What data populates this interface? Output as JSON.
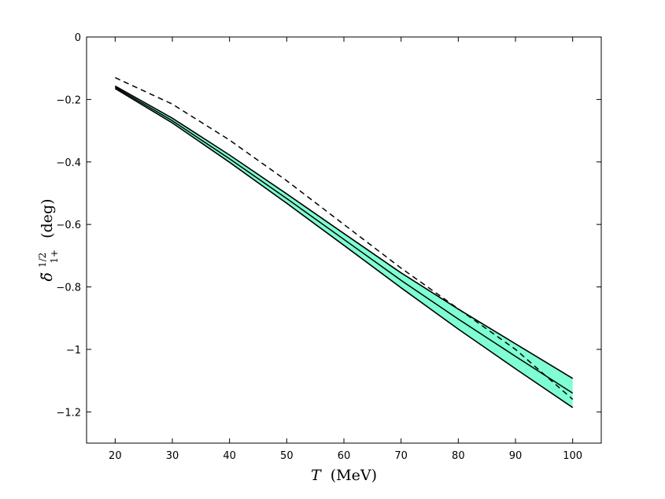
{
  "chart_data": {
    "type": "line",
    "xlabel_symbol": "T",
    "xlabel_unit": "(MeV)",
    "ylabel_base": "δ̃",
    "ylabel_sup": "1/2",
    "ylabel_sub": "1+",
    "ylabel_unit": "(deg)",
    "xlim": [
      15,
      105
    ],
    "ylim": [
      -1.3,
      0
    ],
    "xticks": [
      20,
      30,
      40,
      50,
      60,
      70,
      80,
      90,
      100
    ],
    "xtick_labels": [
      "20",
      "30",
      "40",
      "50",
      "60",
      "70",
      "80",
      "90",
      "100"
    ],
    "yticks": [
      0,
      -0.2,
      -0.4,
      -0.6,
      -0.8,
      -1,
      -1.2
    ],
    "ytick_labels": [
      "0",
      "−0.2",
      "−0.4",
      "−0.6",
      "−0.8",
      "−1",
      "−1.2"
    ],
    "x": [
      20,
      30,
      40,
      50,
      60,
      70,
      80,
      90,
      100
    ],
    "band": {
      "fill": "#7fffd4",
      "upper": [
        -0.157,
        -0.26,
        -0.378,
        -0.502,
        -0.629,
        -0.755,
        -0.871,
        -0.982,
        -1.093
      ],
      "lower": [
        -0.165,
        -0.275,
        -0.401,
        -0.532,
        -0.667,
        -0.803,
        -0.935,
        -1.062,
        -1.186
      ]
    },
    "series": [
      {
        "style": "solid",
        "color": "#000000",
        "values": [
          -0.161,
          -0.268,
          -0.39,
          -0.517,
          -0.648,
          -0.779,
          -0.903,
          -1.022,
          -1.14
        ]
      },
      {
        "style": "dashed",
        "color": "#000000",
        "values": [
          -0.13,
          -0.215,
          -0.33,
          -0.46,
          -0.6,
          -0.74,
          -0.87,
          -1.0,
          -1.16
        ]
      }
    ],
    "grid": false,
    "legend": "none"
  }
}
